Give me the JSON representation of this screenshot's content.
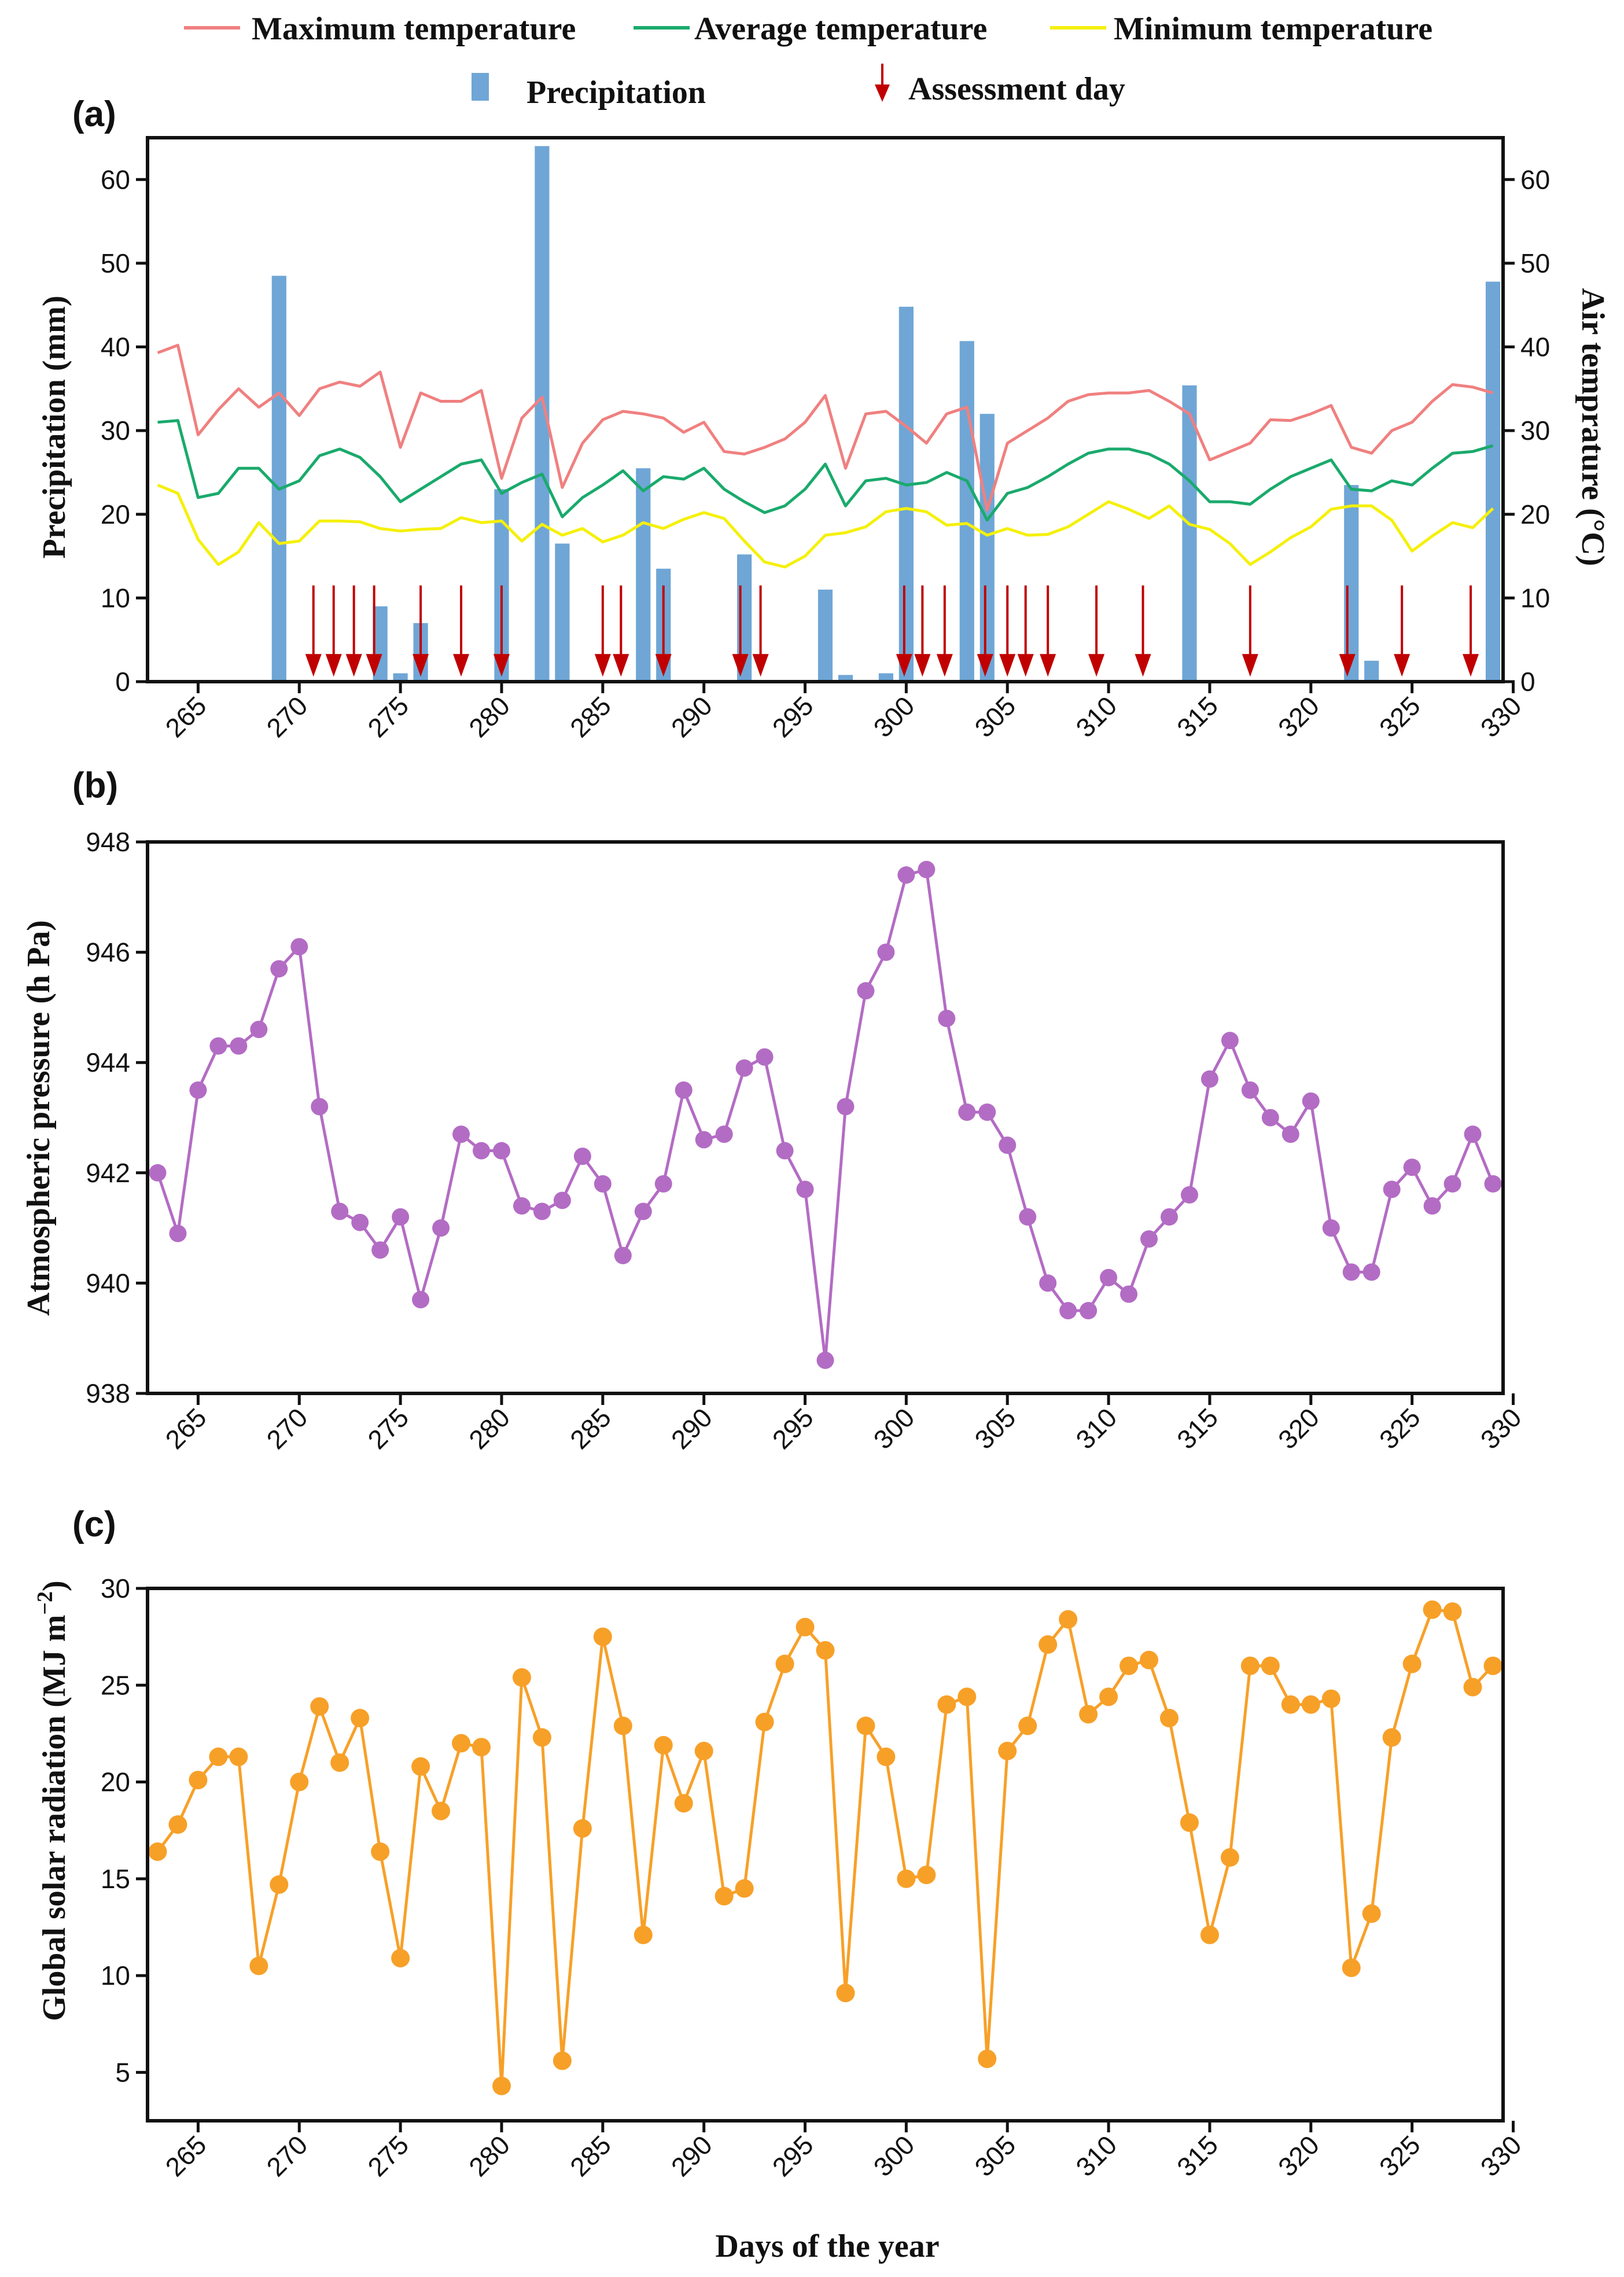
{
  "chart_data": [
    {
      "panel": "(a)",
      "type": "bar+line",
      "legend": {
        "max_temp": "Maximum temperature",
        "avg_temp": "Average temperature",
        "min_temp": "Minimum temperature",
        "precip": "Precipitation",
        "assessment": "Assessment day"
      },
      "ylabel_left": "Precipitation (mm)",
      "ylabel_right": "Air temprature (°C)",
      "xlim": [
        262.5,
        329.5
      ],
      "ylim": [
        0,
        65
      ],
      "y2lim": [
        0,
        65
      ],
      "xticks": [
        265,
        270,
        275,
        280,
        285,
        290,
        295,
        300,
        305,
        310,
        315,
        320,
        325,
        330
      ],
      "yticks": [
        0,
        10,
        20,
        30,
        40,
        50,
        60
      ],
      "y2ticks": [
        0,
        10,
        20,
        30,
        40,
        50,
        60
      ],
      "colors": {
        "max": "#f08080",
        "avg": "#1aaa6c",
        "min": "#f5f00a",
        "precip": "#6fa6d6",
        "arrow": "#c00000"
      },
      "precipitation": {
        "x": [
          269,
          274,
          275,
          276,
          280,
          282,
          283,
          287,
          288,
          292,
          296,
          297,
          299,
          300,
          303,
          304,
          314,
          322,
          323,
          329
        ],
        "values": [
          48.5,
          9,
          1,
          7,
          23,
          64,
          16.5,
          25.5,
          13.5,
          15.2,
          11,
          0.8,
          1,
          44.8,
          40.7,
          32,
          35.4,
          23.5,
          2.5,
          47.8
        ]
      },
      "temperature": {
        "x": [
          263,
          264,
          265,
          266,
          267,
          268,
          269,
          270,
          271,
          272,
          273,
          274,
          275,
          276,
          277,
          278,
          279,
          280,
          281,
          282,
          283,
          284,
          285,
          286,
          287,
          288,
          289,
          290,
          291,
          292,
          293,
          294,
          295,
          296,
          297,
          298,
          299,
          300,
          301,
          302,
          303,
          304,
          305,
          306,
          307,
          308,
          309,
          310,
          311,
          312,
          313,
          314,
          315,
          316,
          317,
          318,
          319,
          320,
          321,
          322,
          323,
          324,
          325,
          326,
          327,
          328,
          329
        ],
        "max": [
          39.3,
          40.2,
          29.5,
          32.5,
          35,
          32.8,
          34.5,
          31.8,
          35,
          35.8,
          35.3,
          37,
          28,
          34.5,
          33.5,
          33.5,
          34.8,
          24.3,
          31.5,
          34,
          23.2,
          28.5,
          31.3,
          32.3,
          32,
          31.5,
          29.8,
          31,
          27.5,
          27.2,
          28,
          29,
          31,
          34.2,
          25.5,
          32,
          32.3,
          30.5,
          28.5,
          32,
          32.8,
          20.5,
          28.5,
          30,
          31.5,
          33.5,
          34.3,
          34.5,
          34.5,
          34.8,
          33.5,
          32,
          26.5,
          27.5,
          28.5,
          31.3,
          31.2,
          32,
          33,
          28,
          27.3,
          30,
          31,
          33.5,
          35.5,
          35.2,
          34.5
        ],
        "avg": [
          31,
          31.2,
          22,
          22.5,
          25.5,
          25.5,
          23,
          24,
          27,
          27.8,
          26.8,
          24.5,
          21.5,
          23,
          24.5,
          26,
          26.5,
          22.5,
          23.8,
          24.8,
          19.7,
          22,
          23.5,
          25.2,
          22.8,
          24.5,
          24.2,
          25.5,
          23,
          21.5,
          20.2,
          21,
          23,
          26,
          21,
          24,
          24.3,
          23.5,
          23.8,
          25,
          24,
          19.3,
          22.5,
          23.2,
          24.5,
          26,
          27.3,
          27.8,
          27.8,
          27.2,
          26,
          24,
          21.5,
          21.5,
          21.2,
          23,
          24.5,
          25.5,
          26.5,
          23,
          22.8,
          24,
          23.5,
          25.5,
          27.3,
          27.5,
          28.2
        ],
        "min": [
          23.5,
          22.5,
          17,
          14,
          15.5,
          19,
          16.5,
          16.8,
          19.2,
          19.2,
          19.1,
          18.3,
          18,
          18.2,
          18.3,
          19.6,
          19,
          19.2,
          16.8,
          18.8,
          17.5,
          18.3,
          16.7,
          17.5,
          19,
          18.3,
          19.4,
          20.2,
          19.5,
          16.8,
          14.3,
          13.7,
          15,
          17.5,
          17.8,
          18.5,
          20.3,
          20.7,
          20.3,
          18.7,
          18.9,
          17.5,
          18.3,
          17.5,
          17.6,
          18.5,
          20,
          21.5,
          20.6,
          19.5,
          21,
          18.8,
          18.2,
          16.5,
          14,
          15.5,
          17.2,
          18.5,
          20.6,
          21,
          21,
          19.3,
          15.6,
          17.4,
          19,
          18.4,
          20.7
        ]
      },
      "assessment_days": [
        270.7,
        271.7,
        272.7,
        273.7,
        276,
        278,
        280,
        285,
        285.9,
        288,
        291.8,
        292.8,
        299.9,
        300.8,
        301.9,
        303.9,
        305,
        305.9,
        307,
        309.4,
        311.7,
        317,
        321.8,
        324.5,
        327.9
      ]
    },
    {
      "panel": "(b)",
      "type": "line",
      "ylabel": "Atmospheric pressure (h  Pa)",
      "xlim": [
        262.5,
        329.5
      ],
      "ylim": [
        938,
        948
      ],
      "xticks": [
        265,
        270,
        275,
        280,
        285,
        290,
        295,
        300,
        305,
        310,
        315,
        320,
        325,
        330
      ],
      "yticks": [
        938,
        940,
        942,
        944,
        946,
        948
      ],
      "color": "#b36cc4",
      "x": [
        263,
        264,
        265,
        266,
        267,
        268,
        269,
        270,
        271,
        272,
        273,
        274,
        275,
        276,
        277,
        278,
        279,
        280,
        281,
        282,
        283,
        284,
        285,
        286,
        287,
        288,
        289,
        290,
        291,
        292,
        293,
        294,
        295,
        296,
        297,
        298,
        299,
        300,
        301,
        302,
        303,
        304,
        305,
        306,
        307,
        308,
        309,
        310,
        311,
        312,
        313,
        314,
        315,
        316,
        317,
        318,
        319,
        320,
        321,
        322,
        323,
        324,
        325,
        326,
        327,
        328,
        329
      ],
      "values": [
        942,
        940.9,
        943.5,
        944.3,
        944.3,
        944.6,
        945.7,
        946.1,
        943.2,
        941.3,
        941.1,
        940.6,
        941.2,
        939.7,
        941,
        942.7,
        942.4,
        942.4,
        941.4,
        941.3,
        941.5,
        942.3,
        941.8,
        940.5,
        941.3,
        941.8,
        943.5,
        942.6,
        942.7,
        943.9,
        944.1,
        942.4,
        941.7,
        938.6,
        943.2,
        945.3,
        946,
        947.4,
        947.5,
        944.8,
        943.1,
        943.1,
        942.5,
        941.2,
        940,
        939.5,
        939.5,
        940.1,
        939.8,
        940.8,
        941.2,
        941.6,
        943.7,
        944.4,
        943.5,
        943,
        942.7,
        943.3,
        941,
        940.2,
        940.2,
        941.7,
        942.1,
        941.4,
        941.8,
        942.7,
        941.8
      ]
    },
    {
      "panel": "(c)",
      "type": "line",
      "ylabel": "Global solar radiation (MJ m",
      "ylabel_sup": "−2",
      "ylabel_end": ")",
      "xlabel": "Days of the year",
      "xlim": [
        262.5,
        329.5
      ],
      "ylim": [
        2.5,
        30
      ],
      "xticks": [
        265,
        270,
        275,
        280,
        285,
        290,
        295,
        300,
        305,
        310,
        315,
        320,
        325,
        330
      ],
      "yticks": [
        5,
        10,
        15,
        20,
        25,
        30
      ],
      "color": "#f7a028",
      "x": [
        263,
        264,
        265,
        266,
        267,
        268,
        269,
        270,
        271,
        272,
        273,
        274,
        275,
        276,
        277,
        278,
        279,
        280,
        281,
        282,
        283,
        284,
        285,
        286,
        287,
        288,
        289,
        290,
        291,
        292,
        293,
        294,
        295,
        296,
        297,
        298,
        299,
        300,
        301,
        302,
        303,
        304,
        305,
        306,
        307,
        308,
        309,
        310,
        311,
        312,
        313,
        314,
        315,
        316,
        317,
        318,
        319,
        320,
        321,
        322,
        323,
        324,
        325,
        326,
        327,
        328,
        329
      ],
      "values": [
        16.4,
        17.8,
        20.1,
        21.3,
        21.3,
        10.5,
        14.7,
        20,
        23.9,
        21,
        23.3,
        16.4,
        10.9,
        20.8,
        18.5,
        22,
        21.8,
        4.3,
        25.4,
        22.3,
        5.6,
        17.6,
        27.5,
        22.9,
        12.1,
        21.9,
        18.9,
        21.6,
        14.1,
        14.5,
        23.1,
        26.1,
        28,
        26.8,
        9.1,
        22.9,
        21.3,
        15,
        15.2,
        24,
        24.4,
        5.7,
        21.6,
        22.9,
        27.1,
        28.4,
        23.5,
        24.4,
        26,
        26.3,
        23.3,
        17.9,
        12.1,
        16.1,
        26,
        26,
        24,
        24,
        24.3,
        10.4,
        13.2,
        22.3,
        26.1,
        28.9,
        28.8,
        24.9,
        26
      ]
    }
  ]
}
